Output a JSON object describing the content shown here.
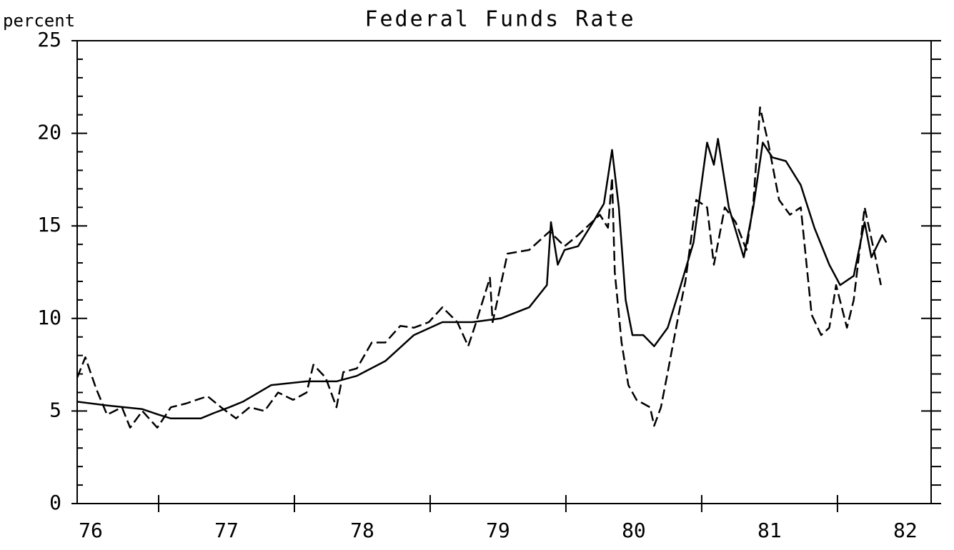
{
  "chart_data": {
    "type": "line",
    "title": "Federal Funds Rate",
    "ylabel": "percent",
    "xlim": [
      1976.4,
      1982.69
    ],
    "xticks": [
      {
        "value": 1976.5,
        "label": "76"
      },
      {
        "value": 1977.5,
        "label": "77"
      },
      {
        "value": 1978.5,
        "label": "78"
      },
      {
        "value": 1979.5,
        "label": "79"
      },
      {
        "value": 1980.5,
        "label": "80"
      },
      {
        "value": 1981.5,
        "label": "81"
      },
      {
        "value": 1982.5,
        "label": "82"
      }
    ],
    "x_year_ticks": [
      1977,
      1978,
      1979,
      1980,
      1981,
      1982
    ],
    "ylim": [
      0,
      25
    ],
    "yticks": [
      0,
      5,
      10,
      15,
      20,
      25
    ],
    "y_minor_ticks": [
      1,
      2,
      3,
      4,
      6,
      7,
      8,
      9,
      11,
      12,
      13,
      14,
      16,
      17,
      18,
      19,
      21,
      22,
      23,
      24
    ],
    "series": [
      {
        "color": "#000000",
        "dash": false,
        "x": [
          1976.4,
          1976.62,
          1976.88,
          1977.0,
          1977.09,
          1977.31,
          1977.41,
          1977.52,
          1977.62,
          1977.83,
          1978.09,
          1978.31,
          1978.46,
          1978.67,
          1978.88,
          1979.09,
          1979.31,
          1979.52,
          1979.73,
          1979.86,
          1979.89,
          1979.94,
          1979.99,
          1980.09,
          1980.2,
          1980.28,
          1980.34,
          1980.39,
          1980.44,
          1980.49,
          1980.57,
          1980.65,
          1980.75,
          1980.83,
          1980.94,
          1981.04,
          1981.09,
          1981.12,
          1981.2,
          1981.31,
          1981.38,
          1981.45,
          1981.52,
          1981.62,
          1981.73,
          1981.83,
          1981.94,
          1982.02,
          1982.12,
          1982.2,
          1982.25,
          1982.33,
          1982.36
        ],
        "values": [
          5.5,
          5.3,
          5.1,
          4.8,
          4.6,
          4.6,
          4.9,
          5.2,
          5.5,
          6.4,
          6.6,
          6.6,
          6.9,
          7.7,
          9.1,
          9.8,
          9.8,
          10.0,
          10.6,
          11.8,
          15.2,
          12.9,
          13.7,
          13.9,
          15.2,
          16.2,
          19.1,
          16.0,
          11.0,
          9.1,
          9.1,
          8.5,
          9.5,
          11.4,
          14.1,
          19.5,
          18.3,
          19.7,
          16.0,
          13.3,
          16.0,
          19.5,
          18.7,
          18.5,
          17.2,
          14.9,
          12.9,
          11.8,
          12.3,
          15.2,
          13.3,
          14.5,
          14.1
        ]
      },
      {
        "color": "#000000",
        "dash": true,
        "x": [
          1976.4,
          1976.46,
          1976.54,
          1976.62,
          1976.73,
          1976.79,
          1976.88,
          1976.99,
          1977.09,
          1977.2,
          1977.36,
          1977.46,
          1977.57,
          1977.67,
          1977.78,
          1977.88,
          1977.99,
          1978.09,
          1978.14,
          1978.23,
          1978.31,
          1978.36,
          1978.46,
          1978.57,
          1978.67,
          1978.78,
          1978.88,
          1978.99,
          1979.09,
          1979.2,
          1979.28,
          1979.33,
          1979.44,
          1979.46,
          1979.57,
          1979.73,
          1979.88,
          1979.99,
          1980.09,
          1980.25,
          1980.31,
          1980.34,
          1980.36,
          1980.41,
          1980.46,
          1980.52,
          1980.62,
          1980.65,
          1980.7,
          1980.75,
          1980.83,
          1980.88,
          1980.96,
          1981.04,
          1981.09,
          1981.17,
          1981.25,
          1981.33,
          1981.38,
          1981.43,
          1981.49,
          1981.57,
          1981.65,
          1981.73,
          1981.81,
          1981.88,
          1981.94,
          1981.99,
          1982.07,
          1982.12,
          1982.2,
          1982.28,
          1982.32
        ],
        "values": [
          6.8,
          7.9,
          6.2,
          4.8,
          5.2,
          4.1,
          5.0,
          4.1,
          5.2,
          5.4,
          5.8,
          5.2,
          4.6,
          5.2,
          5.0,
          6.0,
          5.6,
          6.0,
          7.5,
          6.8,
          5.2,
          7.1,
          7.3,
          8.7,
          8.7,
          9.6,
          9.5,
          9.8,
          10.6,
          9.8,
          8.5,
          9.6,
          12.2,
          9.8,
          13.5,
          13.7,
          14.7,
          13.9,
          14.5,
          15.6,
          14.9,
          17.6,
          12.5,
          8.7,
          6.4,
          5.6,
          5.2,
          4.2,
          5.2,
          7.1,
          10.2,
          12.0,
          16.4,
          16.0,
          12.9,
          16.0,
          15.2,
          13.7,
          16.2,
          21.4,
          19.5,
          16.4,
          15.6,
          16.0,
          10.2,
          9.1,
          9.5,
          11.8,
          9.5,
          11.0,
          16.0,
          13.3,
          11.8
        ]
      }
    ]
  }
}
